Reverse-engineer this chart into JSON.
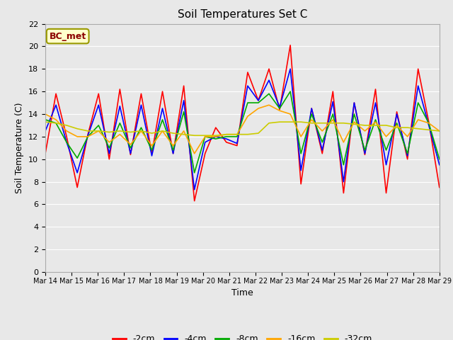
{
  "title": "Soil Temperatures Set C",
  "xlabel": "Time",
  "ylabel": "Soil Temperature (C)",
  "annotation": "BC_met",
  "ylim": [
    0,
    22
  ],
  "yticks": [
    0,
    2,
    4,
    6,
    8,
    10,
    12,
    14,
    16,
    18,
    20,
    22
  ],
  "x_labels": [
    "Mar 14",
    "Mar 15",
    "Mar 16",
    "Mar 17",
    "Mar 18",
    "Mar 19",
    "Mar 20",
    "Mar 21",
    "Mar 22",
    "Mar 23",
    "Mar 24",
    "Mar 25",
    "Mar 26",
    "Mar 27",
    "Mar 28",
    "Mar 29"
  ],
  "series": {
    "-2cm": {
      "color": "#FF0000",
      "data": [
        10.5,
        15.8,
        12.0,
        7.5,
        12.2,
        15.8,
        10.0,
        16.2,
        10.4,
        15.8,
        10.5,
        16.0,
        10.5,
        16.5,
        6.3,
        10.5,
        12.8,
        11.5,
        11.2,
        17.7,
        15.2,
        18.0,
        14.4,
        20.1,
        7.8,
        14.5,
        10.5,
        16.0,
        7.0,
        15.0,
        10.4,
        16.2,
        7.0,
        14.2,
        10.0,
        18.0,
        13.3,
        7.5
      ]
    },
    "-4cm": {
      "color": "#0000FF",
      "data": [
        12.5,
        14.8,
        11.5,
        8.8,
        12.1,
        14.8,
        10.5,
        14.7,
        10.5,
        14.8,
        10.3,
        14.5,
        10.5,
        15.2,
        7.3,
        11.5,
        12.0,
        11.8,
        11.4,
        16.5,
        15.2,
        17.0,
        14.6,
        18.0,
        9.0,
        14.5,
        10.8,
        15.1,
        8.0,
        15.0,
        10.5,
        15.0,
        9.5,
        14.0,
        10.3,
        16.5,
        13.0,
        9.5
      ]
    },
    "-8cm": {
      "color": "#00AA00",
      "data": [
        13.5,
        13.2,
        11.5,
        10.1,
        12.0,
        13.0,
        11.0,
        13.2,
        11.0,
        12.8,
        10.8,
        13.5,
        10.8,
        14.2,
        8.8,
        12.0,
        11.8,
        12.0,
        12.0,
        15.0,
        15.0,
        15.8,
        14.5,
        16.0,
        10.5,
        14.0,
        11.5,
        14.0,
        9.5,
        14.0,
        10.8,
        13.5,
        10.8,
        13.2,
        10.5,
        15.0,
        13.2,
        10.0
      ]
    },
    "-16cm": {
      "color": "#FFA500",
      "data": [
        14.0,
        13.5,
        12.5,
        12.0,
        12.0,
        12.5,
        11.5,
        12.2,
        11.3,
        12.5,
        11.2,
        12.5,
        11.2,
        12.5,
        10.5,
        12.0,
        12.0,
        12.2,
        12.2,
        13.8,
        14.5,
        14.8,
        14.3,
        14.0,
        12.0,
        13.5,
        12.5,
        13.5,
        11.5,
        13.3,
        12.5,
        13.3,
        12.0,
        13.0,
        12.0,
        13.5,
        13.2,
        12.5
      ]
    },
    "-32cm": {
      "color": "#CCCC00",
      "data": [
        13.3,
        13.2,
        13.0,
        12.7,
        12.5,
        12.5,
        12.4,
        12.5,
        12.4,
        12.5,
        12.3,
        12.5,
        12.3,
        12.2,
        12.1,
        12.1,
        12.1,
        12.2,
        12.2,
        12.2,
        12.3,
        13.2,
        13.3,
        13.3,
        13.3,
        13.2,
        13.2,
        13.2,
        13.2,
        13.1,
        13.0,
        13.0,
        13.0,
        12.8,
        12.8,
        12.7,
        12.6,
        12.5
      ]
    }
  },
  "bg_color": "#E8E8E8",
  "grid_color": "#FFFFFF",
  "legend_entries": [
    "-2cm",
    "-4cm",
    "-8cm",
    "-16cm",
    "-32cm"
  ],
  "legend_colors": [
    "#FF0000",
    "#0000FF",
    "#00AA00",
    "#FFA500",
    "#CCCC00"
  ]
}
